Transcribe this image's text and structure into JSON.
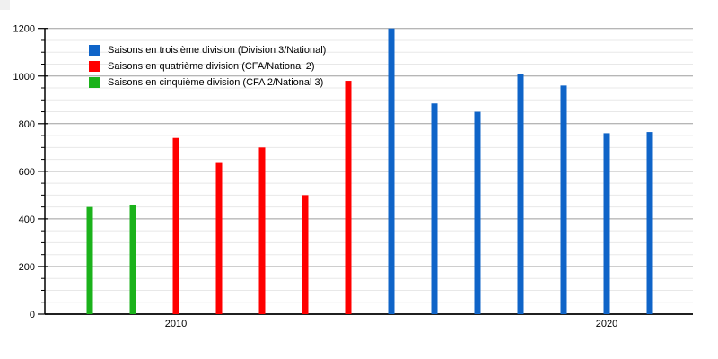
{
  "chart_data": {
    "type": "bar",
    "title": "",
    "xlabel": "",
    "ylabel": "",
    "x": [
      2008,
      2009,
      2010,
      2011,
      2012,
      2013,
      2014,
      2015,
      2016,
      2017,
      2018,
      2019,
      2020,
      2021
    ],
    "series": [
      {
        "name": "Saisons en troisième division (Division 3/National)",
        "color": "#0f64c8",
        "values": [
          null,
          null,
          null,
          null,
          null,
          null,
          null,
          1200,
          885,
          850,
          1010,
          960,
          760,
          765
        ]
      },
      {
        "name": "Saisons en quatrième division (CFA/National 2)",
        "color": "#ff0000",
        "values": [
          null,
          null,
          740,
          635,
          700,
          500,
          980,
          null,
          null,
          null,
          null,
          null,
          null,
          null
        ]
      },
      {
        "name": "Saisons en cinquième division (CFA 2/National 3)",
        "color": "#1bb21b",
        "values": [
          450,
          460,
          null,
          null,
          null,
          null,
          null,
          null,
          null,
          null,
          null,
          null,
          null,
          null
        ]
      }
    ],
    "ylim": [
      0,
      1200
    ],
    "y_major_ticks": [
      0,
      200,
      400,
      600,
      800,
      1000,
      1200
    ],
    "y_minor_step": 50,
    "x_tick_labels": [
      {
        "label": "2010",
        "year": 2010
      },
      {
        "label": "2020",
        "year": 2020
      }
    ],
    "grid": "major+minor",
    "legend_position": "top-left"
  },
  "colors": {
    "axis": "#000000",
    "major_grid": "#9e9e9e",
    "minor_grid": "#e8e8e8",
    "background": "#ffffff",
    "corner_artifact": "#f0f0f0"
  }
}
